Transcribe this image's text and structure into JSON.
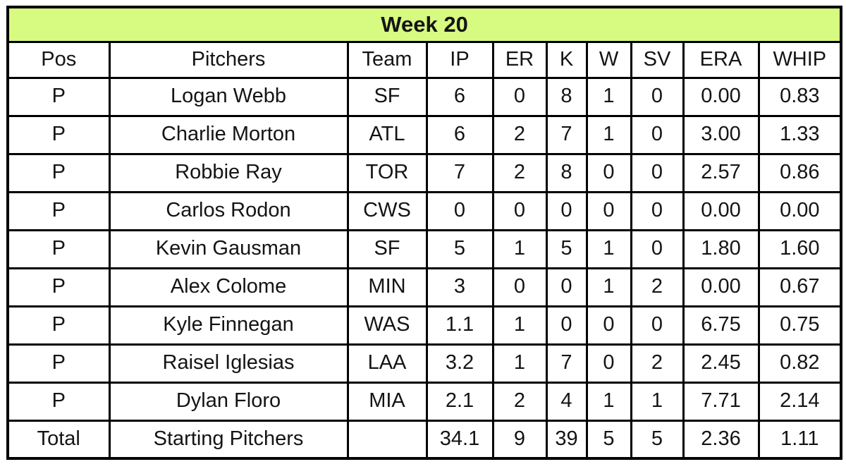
{
  "chart_data": {
    "type": "table",
    "title": "Week 20",
    "columns": [
      "Pos",
      "Pitchers",
      "Team",
      "IP",
      "ER",
      "K",
      "W",
      "SV",
      "ERA",
      "WHIP"
    ],
    "rows": [
      [
        "P",
        "Logan Webb",
        "SF",
        "6",
        "0",
        "8",
        "1",
        "0",
        "0.00",
        "0.83"
      ],
      [
        "P",
        "Charlie Morton",
        "ATL",
        "6",
        "2",
        "7",
        "1",
        "0",
        "3.00",
        "1.33"
      ],
      [
        "P",
        "Robbie Ray",
        "TOR",
        "7",
        "2",
        "8",
        "0",
        "0",
        "2.57",
        "0.86"
      ],
      [
        "P",
        "Carlos Rodon",
        "CWS",
        "0",
        "0",
        "0",
        "0",
        "0",
        "0.00",
        "0.00"
      ],
      [
        "P",
        "Kevin Gausman",
        "SF",
        "5",
        "1",
        "5",
        "1",
        "0",
        "1.80",
        "1.60"
      ],
      [
        "P",
        "Alex Colome",
        "MIN",
        "3",
        "0",
        "0",
        "1",
        "2",
        "0.00",
        "0.67"
      ],
      [
        "P",
        "Kyle Finnegan",
        "WAS",
        "1.1",
        "1",
        "0",
        "0",
        "0",
        "6.75",
        "0.75"
      ],
      [
        "P",
        "Raisel Iglesias",
        "LAA",
        "3.2",
        "1",
        "7",
        "0",
        "2",
        "2.45",
        "0.82"
      ],
      [
        "P",
        "Dylan Floro",
        "MIA",
        "2.1",
        "2",
        "4",
        "1",
        "1",
        "7.71",
        "2.14"
      ]
    ],
    "total_row": [
      "Total",
      "Starting Pitchers",
      "",
      "34.1",
      "9",
      "39",
      "5",
      "5",
      "2.36",
      "1.11"
    ]
  },
  "colors": {
    "title_bg": "#d7fa81",
    "border": "#000000",
    "text": "#141414",
    "background": "#ffffff"
  }
}
